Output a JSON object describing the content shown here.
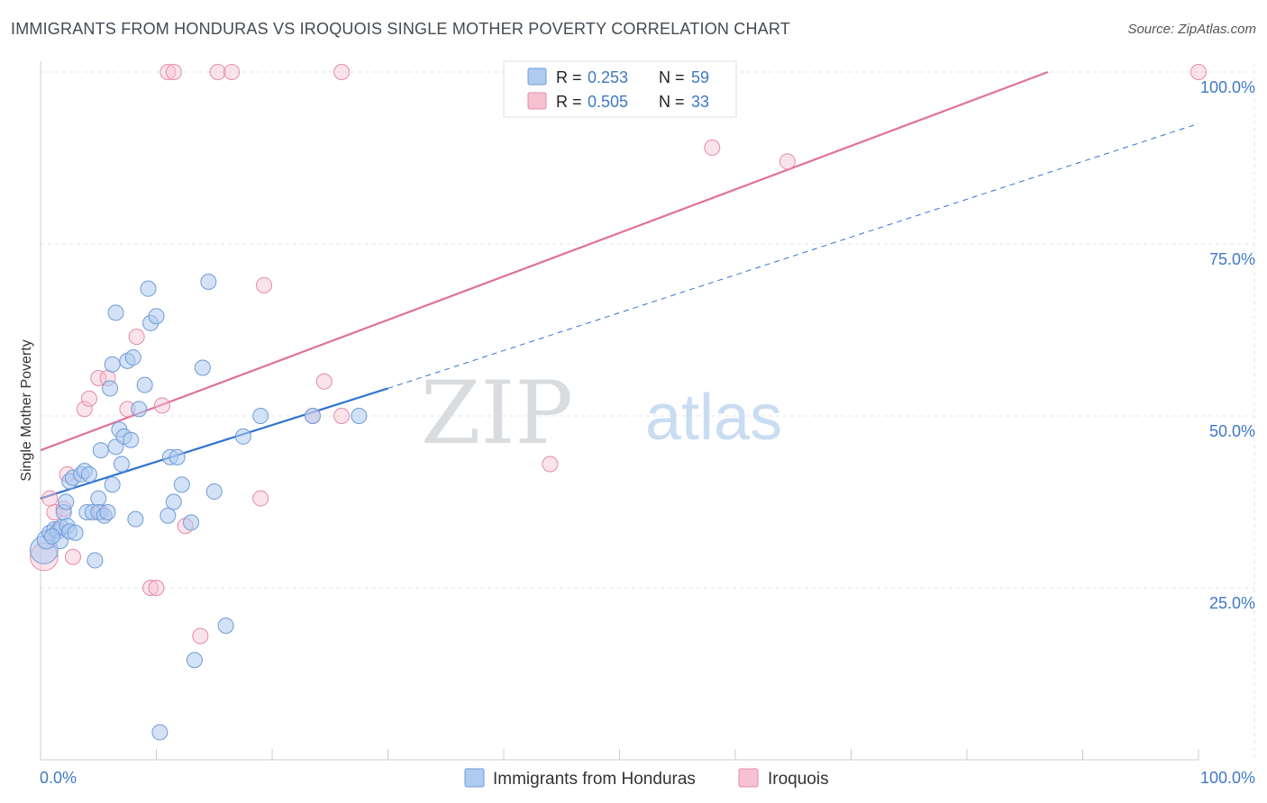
{
  "title": "IMMIGRANTS FROM HONDURAS VS IROQUOIS SINGLE MOTHER POVERTY CORRELATION CHART",
  "source": "Source: ZipAtlas.com",
  "watermark": {
    "zip": "ZIP",
    "atlas": "atlas"
  },
  "colors": {
    "blue_fill": "#aecbf0",
    "blue_stroke": "#6f9bd6",
    "blue_line": "#2f74d0",
    "pink_fill": "#f6c2d2",
    "pink_stroke": "#e48aa8",
    "pink_line": "#e0709a",
    "axis_label": "#3f78c6",
    "grid": "#e3e6ea"
  },
  "chart_data": {
    "type": "scatter",
    "xlabel": "",
    "ylabel": "Single Mother Poverty",
    "xlim": [
      0,
      100
    ],
    "ylim": [
      0,
      100
    ],
    "x_tick_labels": [
      {
        "value": 0,
        "label": "0.0%"
      },
      {
        "value": 100,
        "label": "100.0%"
      }
    ],
    "y_tick_labels": [
      {
        "value": 25,
        "label": "25.0%"
      },
      {
        "value": 50,
        "label": "50.0%"
      },
      {
        "value": 75,
        "label": "75.0%"
      },
      {
        "value": 100,
        "label": "100.0%"
      }
    ],
    "legend_stats": [
      {
        "r_label": "R =",
        "r_value": "0.253",
        "n_label": "N =",
        "n_value": "59"
      },
      {
        "r_label": "R =",
        "r_value": "0.505",
        "n_label": "N =",
        "n_value": "33"
      }
    ],
    "series": [
      {
        "name": "Immigrants from Honduras",
        "color": "blue",
        "trend": {
          "x0": 0,
          "y0": 38,
          "x1": 30,
          "y1": 54,
          "dashed_to_x": 100,
          "dashed_to_y": 92.5
        },
        "points": [
          [
            0.3,
            30.5,
            1.8
          ],
          [
            0.5,
            32,
            1.2
          ],
          [
            0.8,
            33,
            1
          ],
          [
            1.2,
            33.5,
            1
          ],
          [
            1.5,
            33.2,
            1
          ],
          [
            1.7,
            31.8,
            1
          ],
          [
            1.8,
            33.8,
            1
          ],
          [
            2,
            36,
            1
          ],
          [
            2.2,
            37.5,
            1
          ],
          [
            2.3,
            34,
            1
          ],
          [
            2.5,
            33.2,
            1
          ],
          [
            2.5,
            40.5,
            1
          ],
          [
            2.8,
            41,
            1
          ],
          [
            3.5,
            41.5,
            1
          ],
          [
            3.8,
            42,
            1
          ],
          [
            4,
            36,
            1
          ],
          [
            4.2,
            41.5,
            1
          ],
          [
            4.5,
            36,
            1
          ],
          [
            4.7,
            29,
            1
          ],
          [
            5,
            38,
            1
          ],
          [
            5,
            36,
            1
          ],
          [
            5.2,
            45,
            1
          ],
          [
            5.5,
            35.5,
            1
          ],
          [
            5.8,
            36,
            1
          ],
          [
            6,
            54,
            1
          ],
          [
            6.2,
            57.5,
            1
          ],
          [
            6.2,
            40,
            1
          ],
          [
            6.5,
            45.5,
            1
          ],
          [
            6.5,
            65,
            1
          ],
          [
            6.8,
            48,
            1
          ],
          [
            7,
            43,
            1
          ],
          [
            7.2,
            47,
            1
          ],
          [
            7.5,
            58,
            1
          ],
          [
            7.8,
            46.5,
            1
          ],
          [
            8,
            58.5,
            1
          ],
          [
            8.2,
            35,
            1
          ],
          [
            8.5,
            51,
            1
          ],
          [
            9,
            54.5,
            1
          ],
          [
            9.3,
            68.5,
            1
          ],
          [
            9.5,
            63.5,
            1
          ],
          [
            10,
            64.5,
            1
          ],
          [
            10.3,
            4,
            1
          ],
          [
            11,
            35.5,
            1
          ],
          [
            11.2,
            44,
            1
          ],
          [
            11.5,
            37.5,
            1
          ],
          [
            11.8,
            44,
            1
          ],
          [
            12.2,
            40,
            1
          ],
          [
            13,
            34.5,
            1
          ],
          [
            13.3,
            14.5,
            1
          ],
          [
            14,
            57,
            1
          ],
          [
            14.5,
            69.5,
            1
          ],
          [
            15,
            39,
            1
          ],
          [
            16,
            19.5,
            1
          ],
          [
            17.5,
            47,
            1
          ],
          [
            19,
            50,
            1
          ],
          [
            23.5,
            50,
            1
          ],
          [
            27.5,
            50,
            1
          ],
          [
            1,
            32.5,
            1
          ],
          [
            3,
            33,
            1
          ]
        ]
      },
      {
        "name": "Iroquois",
        "color": "pink",
        "trend": {
          "x0": 0,
          "y0": 45,
          "x1": 87,
          "y1": 100
        },
        "points": [
          [
            0.3,
            29.5,
            1.8
          ],
          [
            0.8,
            38,
            1
          ],
          [
            1.2,
            36,
            1
          ],
          [
            1.5,
            33.5,
            1
          ],
          [
            2,
            36.5,
            1
          ],
          [
            2.3,
            41.5,
            1
          ],
          [
            2.8,
            29.5,
            1
          ],
          [
            3.8,
            51,
            1
          ],
          [
            4.2,
            52.5,
            1
          ],
          [
            5,
            55.5,
            1
          ],
          [
            5.2,
            36,
            1
          ],
          [
            5.8,
            55.5,
            1
          ],
          [
            7.5,
            51,
            1
          ],
          [
            8.3,
            61.5,
            1
          ],
          [
            9.5,
            25,
            1
          ],
          [
            10,
            25,
            1
          ],
          [
            10.5,
            51.5,
            1
          ],
          [
            11,
            100,
            1
          ],
          [
            11.5,
            100,
            1
          ],
          [
            12.5,
            34,
            1
          ],
          [
            13.8,
            18,
            1
          ],
          [
            15.3,
            100,
            1
          ],
          [
            16.5,
            100,
            1
          ],
          [
            19,
            38,
            1
          ],
          [
            19.3,
            69,
            1
          ],
          [
            23.5,
            50,
            1
          ],
          [
            24.5,
            55,
            1
          ],
          [
            26,
            50,
            1
          ],
          [
            26,
            100,
            1
          ],
          [
            44,
            43,
            1
          ],
          [
            58,
            89,
            1
          ],
          [
            64.5,
            87,
            1
          ],
          [
            100,
            100,
            1
          ]
        ]
      }
    ]
  }
}
